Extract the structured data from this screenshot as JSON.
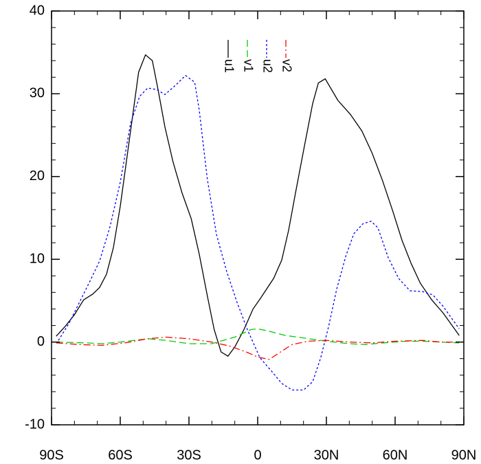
{
  "chart_data": {
    "type": "line",
    "xlim": [
      -90,
      90
    ],
    "ylim": [
      -10,
      40
    ],
    "xticks": [
      {
        "value": -90,
        "label": "90S"
      },
      {
        "value": -60,
        "label": "60S"
      },
      {
        "value": -30,
        "label": "30S"
      },
      0,
      {
        "value": 30,
        "label": "30N"
      },
      {
        "value": 60,
        "label": "60N"
      },
      {
        "value": 90,
        "label": "90N"
      }
    ],
    "yticks": [
      -10,
      0,
      10,
      20,
      30,
      40
    ],
    "xminorticks": [
      -80,
      -70,
      -50,
      -40,
      -20,
      -10,
      10,
      20,
      40,
      50,
      70,
      80
    ],
    "yminorticks": [
      -8,
      -6,
      -4,
      -2,
      2,
      4,
      6,
      8,
      12,
      14,
      16,
      18,
      22,
      24,
      26,
      28,
      32,
      34,
      36,
      38
    ],
    "legend": "top",
    "series": [
      {
        "name": "u1",
        "color": "#000000",
        "dash": "solid",
        "x": [
          -88,
          -84,
          -80,
          -76,
          -72,
          -69,
          -66,
          -63,
          -60,
          -55.5,
          -52,
          -49,
          -46,
          -43.5,
          -40.5,
          -37,
          -33,
          -29,
          -25.5,
          -22,
          -19,
          -16,
          -13,
          -10,
          -6,
          -2,
          1.5,
          7,
          10.5,
          13.5,
          16.5,
          20.5,
          24,
          26.5,
          29.5,
          35,
          40.5,
          45.5,
          50,
          54.5,
          59,
          63,
          67,
          71,
          76,
          81,
          88
        ],
        "values": [
          0.7,
          1.9,
          3.3,
          5.1,
          5.8,
          6.6,
          8.2,
          11.4,
          16.4,
          25.5,
          32.6,
          34.7,
          34.0,
          30.5,
          26,
          21.8,
          18.0,
          14.9,
          10.6,
          5.6,
          1.5,
          -1.2,
          -1.7,
          -0.6,
          1.5,
          4.0,
          5.4,
          7.7,
          9.9,
          13.5,
          18.0,
          23.8,
          28.8,
          31.3,
          31.8,
          29.2,
          27.5,
          25.5,
          22.8,
          19.5,
          15.8,
          12.3,
          9.5,
          7.1,
          5.1,
          3.5,
          0.8
        ]
      },
      {
        "name": "v1",
        "color": "#00cc00",
        "dash": "dashed",
        "x": [
          -88,
          -75,
          -68,
          -60,
          -48,
          -40,
          -30,
          -20,
          -10,
          -3,
          0,
          5,
          12,
          20,
          30,
          40,
          47,
          55,
          65,
          72,
          80,
          88
        ],
        "values": [
          0,
          -0.1,
          -0.2,
          0,
          0.4,
          0.2,
          -0.2,
          -0.2,
          0.6,
          1.5,
          1.6,
          1.3,
          0.8,
          0.5,
          0.1,
          -0.2,
          -0.3,
          -0.1,
          0.1,
          0.1,
          0.0,
          -0.1
        ]
      },
      {
        "name": "u2",
        "color": "#0000ff",
        "dash": "dotted",
        "x": [
          -87,
          -82.5,
          -78,
          -73.5,
          -69,
          -64.5,
          -60,
          -55.5,
          -51.5,
          -48,
          -44,
          -40.5,
          -36,
          -31.5,
          -27.5,
          -25.5,
          -22,
          -18,
          -13.5,
          -9,
          -4.5,
          1,
          6,
          10.5,
          15,
          20,
          24,
          27.5,
          31,
          34.5,
          38.5,
          42,
          46,
          49.5,
          52.5,
          57,
          61.5,
          66.5,
          72,
          76.5,
          81,
          88
        ],
        "values": [
          0.2,
          2.2,
          4.7,
          7.2,
          9.8,
          13.9,
          19.3,
          26.4,
          29.7,
          30.7,
          30.5,
          29.9,
          31.0,
          32.2,
          31.4,
          28,
          19.7,
          13,
          8.5,
          4.8,
          1.5,
          -1.9,
          -3.5,
          -5.0,
          -5.8,
          -5.8,
          -4.8,
          -1.9,
          1.9,
          6.4,
          10.4,
          13.1,
          14.3,
          14.6,
          13.8,
          10.2,
          7.7,
          6.2,
          6.1,
          5.7,
          4.3,
          1.6
        ]
      },
      {
        "name": "v2",
        "color": "#ff0000",
        "dash": "dashdot",
        "x": [
          -88,
          -78,
          -68,
          -58,
          -48,
          -40,
          -30,
          -20,
          -12,
          -5,
          0,
          5,
          10,
          15,
          22,
          30,
          40,
          50,
          60,
          72,
          80,
          88
        ],
        "values": [
          -0.1,
          -0.3,
          -0.4,
          -0.1,
          0.4,
          0.6,
          0.4,
          0,
          -0.5,
          -1.2,
          -1.8,
          -2.1,
          -1.2,
          -0.3,
          0.1,
          0.2,
          0,
          -0.1,
          0.1,
          0.2,
          0.0,
          0
        ]
      }
    ]
  }
}
